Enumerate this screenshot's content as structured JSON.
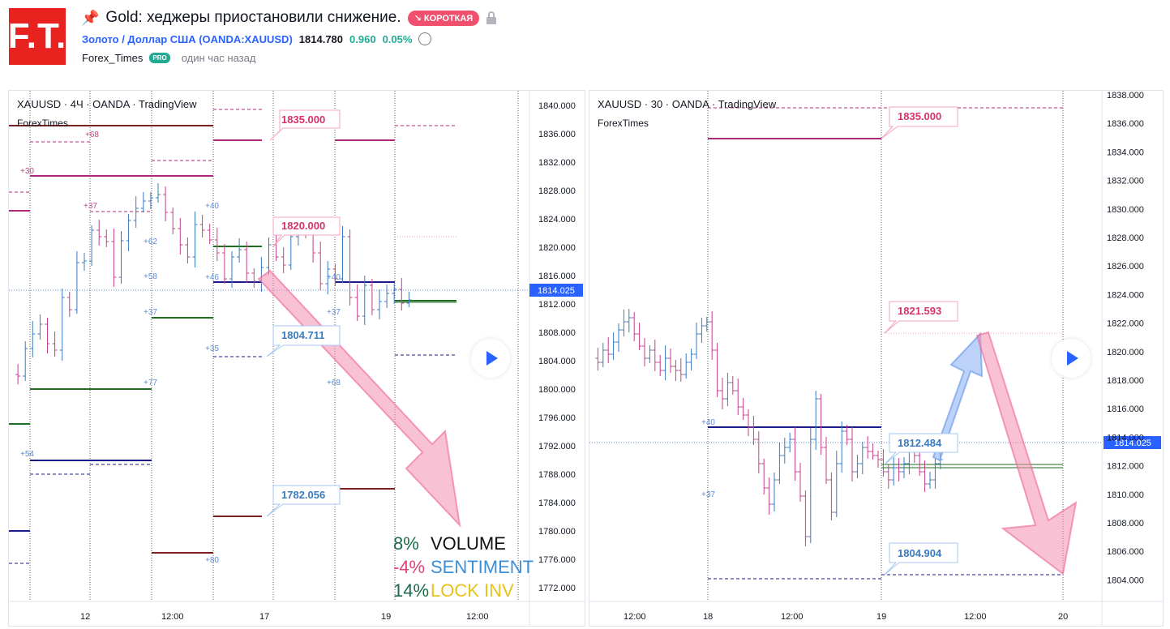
{
  "header": {
    "logo_text": "F.T.",
    "title": "Gold: хеджеры приостановили снижение.",
    "badge": "↘ КОРОТКАЯ",
    "symbol_full": "Золото / Доллар США (OANDA:XAUUSD)",
    "price": "1814.780",
    "change": "0.960",
    "change_pct": "0.05%",
    "author": "Forex_Times",
    "author_badge": "PRO",
    "published": "один час назад"
  },
  "chart_left": {
    "title": "XAUUSD · 4Ч · OANDA · TradingView",
    "watermark": "ForexTimes",
    "price_axis": [
      "1840.000",
      "1836.000",
      "1832.000",
      "1828.000",
      "1824.000",
      "1820.000",
      "1816.000",
      "1812.000",
      "1808.000",
      "1804.000",
      "1800.000",
      "1796.000",
      "1792.000",
      "1788.000",
      "1784.000",
      "1780.000",
      "1776.000",
      "1772.000"
    ],
    "current_price": "1814.025",
    "time_axis": [
      "12",
      "12:00",
      "17",
      "19",
      "12:00"
    ],
    "callouts": [
      "1835.000",
      "1820.000",
      "1804.711",
      "1782.056"
    ],
    "level_labels": [
      "+68",
      "+30",
      "+37",
      "+62",
      "+40",
      "+58",
      "+46",
      "+40",
      "+37",
      "+37",
      "+35",
      "+68",
      "+77",
      "+54",
      "+80"
    ],
    "legend": [
      {
        "pct": "8%",
        "label": "VOLUME",
        "pct_color": "#1b6b4a",
        "label_color": "#111111"
      },
      {
        "pct": "-4%",
        "label": "SENTIMENT",
        "pct_color": "#e0457b",
        "label_color": "#3a8fd8"
      },
      {
        "pct": "14%",
        "label": "LOCK INV",
        "pct_color": "#1b6b4a",
        "label_color": "#e8c21a"
      }
    ]
  },
  "chart_right": {
    "title": "XAUUSD · 30 · OANDA · TradingView",
    "watermark": "ForexTimes",
    "price_axis": [
      "1838.000",
      "1836.000",
      "1834.000",
      "1832.000",
      "1830.000",
      "1828.000",
      "1826.000",
      "1824.000",
      "1822.000",
      "1820.000",
      "1818.000",
      "1816.000",
      "1814.000",
      "1812.000",
      "1810.000",
      "1808.000",
      "1806.000",
      "1804.000"
    ],
    "current_price": "1814.025",
    "time_axis": [
      "12:00",
      "18",
      "12:00",
      "19",
      "12:00",
      "20"
    ],
    "callouts": [
      "1835.000",
      "1821.593",
      "1812.484",
      "1804.904"
    ],
    "level_labels": [
      "+40",
      "+37"
    ]
  },
  "colors": {
    "accent_blue": "#2962ff",
    "candle_up": "#3a7bbf",
    "candle_down": "#c2418a",
    "arrow_pink": "#f48fb1",
    "arrow_blue": "#90b4f5"
  }
}
